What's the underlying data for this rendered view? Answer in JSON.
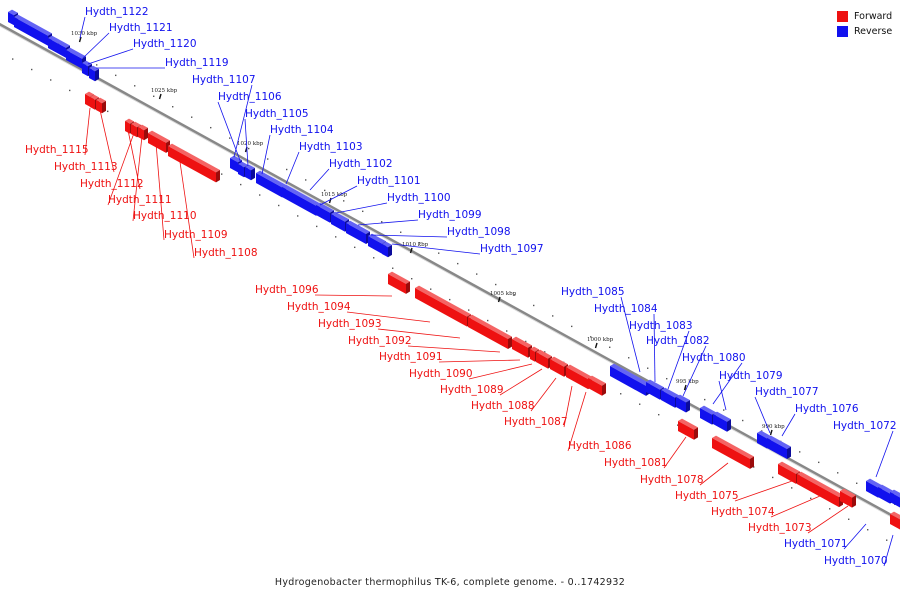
{
  "title": "Hydrogenobacter thermophilus TK-6, complete genome. - 0..1742932",
  "colors": {
    "forward": "#ee1111",
    "reverse": "#1111ee",
    "backbone": "#888888",
    "backbone_light": "#dddddd"
  },
  "legend": [
    {
      "label": "Forward",
      "strand": "forward"
    },
    {
      "label": "Reverse",
      "strand": "reverse"
    }
  ],
  "ticks": [
    {
      "label": "1030 kbp",
      "kbp": 1030
    },
    {
      "label": "1025 kbp",
      "kbp": 1025
    },
    {
      "label": "1020 kbp",
      "kbp": 1020
    },
    {
      "label": "1015 kbp",
      "kbp": 1015
    },
    {
      "label": "1010 kbp",
      "kbp": 1010
    },
    {
      "label": "1005 kbp",
      "kbp": 1005
    },
    {
      "label": "1000 kbp",
      "kbp": 1000
    },
    {
      "label": "995 kbp",
      "kbp": 995
    },
    {
      "label": "990 kbp",
      "kbp": 990
    }
  ],
  "genes": [
    {
      "name": "Hydth_1122",
      "strand": "reverse"
    },
    {
      "name": "Hydth_1121",
      "strand": "reverse"
    },
    {
      "name": "Hydth_1120",
      "strand": "reverse"
    },
    {
      "name": "Hydth_1119",
      "strand": "reverse"
    },
    {
      "name": "Hydth_1115",
      "strand": "forward"
    },
    {
      "name": "Hydth_1113",
      "strand": "forward"
    },
    {
      "name": "Hydth_1112",
      "strand": "forward"
    },
    {
      "name": "Hydth_1111",
      "strand": "forward"
    },
    {
      "name": "Hydth_1110",
      "strand": "forward"
    },
    {
      "name": "Hydth_1109",
      "strand": "forward"
    },
    {
      "name": "Hydth_1108",
      "strand": "forward"
    },
    {
      "name": "Hydth_1107",
      "strand": "reverse"
    },
    {
      "name": "Hydth_1106",
      "strand": "reverse"
    },
    {
      "name": "Hydth_1105",
      "strand": "reverse"
    },
    {
      "name": "Hydth_1104",
      "strand": "reverse"
    },
    {
      "name": "Hydth_1103",
      "strand": "reverse"
    },
    {
      "name": "Hydth_1102",
      "strand": "reverse"
    },
    {
      "name": "Hydth_1101",
      "strand": "reverse"
    },
    {
      "name": "Hydth_1100",
      "strand": "reverse"
    },
    {
      "name": "Hydth_1099",
      "strand": "reverse"
    },
    {
      "name": "Hydth_1098",
      "strand": "reverse"
    },
    {
      "name": "Hydth_1097",
      "strand": "reverse"
    },
    {
      "name": "Hydth_1096",
      "strand": "forward"
    },
    {
      "name": "Hydth_1094",
      "strand": "forward"
    },
    {
      "name": "Hydth_1093",
      "strand": "forward"
    },
    {
      "name": "Hydth_1092",
      "strand": "forward"
    },
    {
      "name": "Hydth_1091",
      "strand": "forward"
    },
    {
      "name": "Hydth_1090",
      "strand": "forward"
    },
    {
      "name": "Hydth_1089",
      "strand": "forward"
    },
    {
      "name": "Hydth_1088",
      "strand": "forward"
    },
    {
      "name": "Hydth_1087",
      "strand": "forward"
    },
    {
      "name": "Hydth_1086",
      "strand": "forward"
    },
    {
      "name": "Hydth_1085",
      "strand": "reverse"
    },
    {
      "name": "Hydth_1084",
      "strand": "reverse"
    },
    {
      "name": "Hydth_1083",
      "strand": "reverse"
    },
    {
      "name": "Hydth_1082",
      "strand": "reverse"
    },
    {
      "name": "Hydth_1081",
      "strand": "forward"
    },
    {
      "name": "Hydth_1080",
      "strand": "reverse"
    },
    {
      "name": "Hydth_1079",
      "strand": "reverse"
    },
    {
      "name": "Hydth_1078",
      "strand": "forward"
    },
    {
      "name": "Hydth_1077",
      "strand": "reverse"
    },
    {
      "name": "Hydth_1076",
      "strand": "reverse"
    },
    {
      "name": "Hydth_1075",
      "strand": "forward"
    },
    {
      "name": "Hydth_1074",
      "strand": "forward"
    },
    {
      "name": "Hydth_1073",
      "strand": "forward"
    },
    {
      "name": "Hydth_1072",
      "strand": "reverse"
    },
    {
      "name": "Hydth_1071",
      "strand": "reverse"
    },
    {
      "name": "Hydth_1070",
      "strand": "reverse"
    }
  ]
}
